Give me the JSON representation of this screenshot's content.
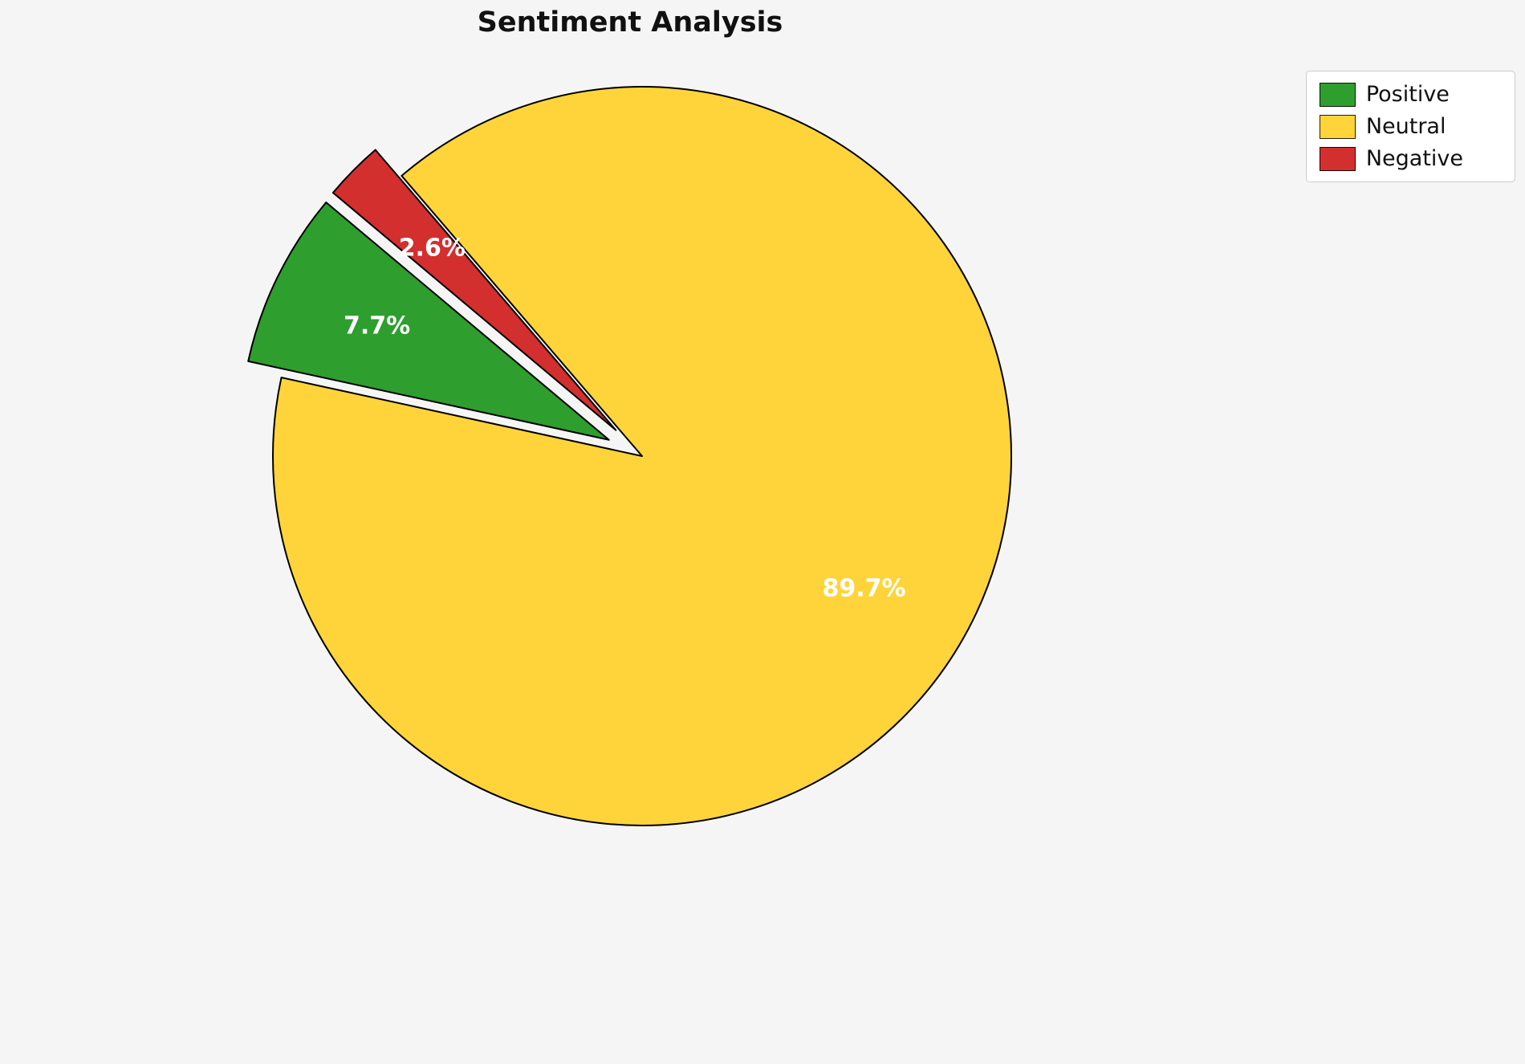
{
  "title": "Sentiment Analysis",
  "colors": {
    "background": "#f5f5f5",
    "positive": "#2e9e2e",
    "neutral": "#ffd43b",
    "negative": "#d32f2f",
    "wedge_edge": "#000000",
    "percent_text": "#ffffff",
    "legend_border": "#cccccc",
    "legend_background": "#ffffff"
  },
  "legend": {
    "position": "upper right",
    "items": [
      {
        "label": "Positive",
        "color": "#2e9e2e"
      },
      {
        "label": "Neutral",
        "color": "#ffd43b"
      },
      {
        "label": "Negative",
        "color": "#d32f2f"
      }
    ]
  },
  "chart_data": {
    "type": "pie",
    "title": "Sentiment Analysis",
    "labels": [
      "Positive",
      "Neutral",
      "Negative"
    ],
    "values": [
      7.7,
      89.7,
      2.6
    ],
    "pct_labels": [
      "7.7%",
      "89.7%",
      "2.6%"
    ],
    "colors": [
      "#2e9e2e",
      "#ffd43b",
      "#d32f2f"
    ],
    "explode": [
      0.1,
      0,
      0.1
    ],
    "start_angle": 140,
    "counterclockwise": true,
    "pct_distance": 0.7,
    "edge_color": "#000000",
    "legend_position": "upper right"
  }
}
